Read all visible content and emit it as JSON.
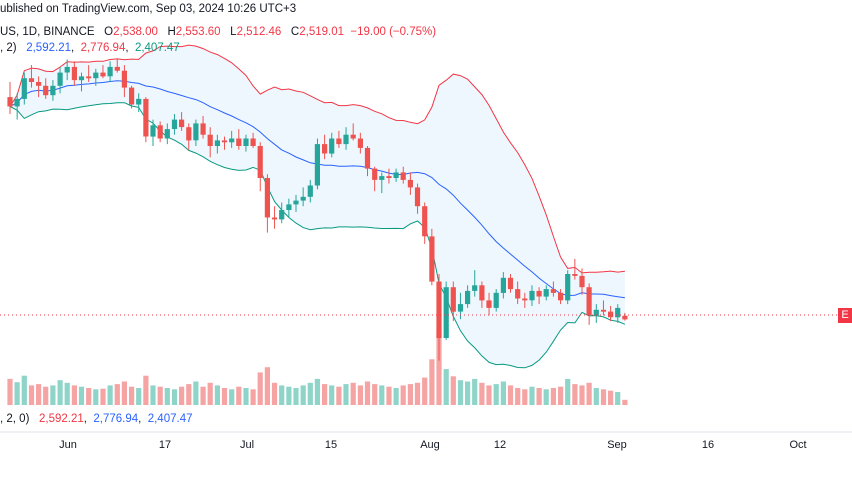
{
  "header": {
    "published": "ublished on TradingView.com, Sep 03, 2024 10:26 UTC+3",
    "symbol": "US, 1D, BINANCE",
    "o_label": "O",
    "o_value": "2,538.00",
    "h_label": "H",
    "h_value": "2,553.60",
    "l_label": "L",
    "l_value": "2,512.46",
    "c_label": "C",
    "c_value": "2,519.01",
    "change": "−19.00 (−0.75%)",
    "bb_params": ", 2)",
    "bb_basis": "2,592.21",
    "bb_upper": "2,776.94",
    "bb_lower": "2,407.47"
  },
  "volume_legend": {
    "params": ", 2, 0)",
    "basis": "2,592.21",
    "upper": "2,776.94",
    "lower": "2,407.47"
  },
  "price_tag": "E",
  "colors": {
    "up": "#26a69a",
    "down": "#ef5350",
    "upper": "#f23645",
    "basis": "#2962ff",
    "lower": "#089981",
    "band_fill": "#e3f2fd",
    "vol_up": "#8fd4c8",
    "vol_down": "#f5a3a3"
  },
  "chart_data": {
    "type": "candlestick",
    "x_ticks": [
      "Jun",
      "17",
      "Jul",
      "15",
      "Aug",
      "12",
      "Sep",
      "16",
      "Oct"
    ],
    "candles": [
      [
        3700,
        3780,
        3610,
        3650
      ],
      [
        3650,
        3720,
        3580,
        3690
      ],
      [
        3690,
        3830,
        3660,
        3800
      ],
      [
        3800,
        3870,
        3750,
        3780
      ],
      [
        3780,
        3810,
        3700,
        3760
      ],
      [
        3760,
        3800,
        3690,
        3710
      ],
      [
        3710,
        3790,
        3680,
        3760
      ],
      [
        3760,
        3860,
        3720,
        3830
      ],
      [
        3830,
        3900,
        3790,
        3860
      ],
      [
        3860,
        3890,
        3760,
        3790
      ],
      [
        3790,
        3830,
        3730,
        3810
      ],
      [
        3810,
        3870,
        3780,
        3800
      ],
      [
        3800,
        3850,
        3760,
        3830
      ],
      [
        3830,
        3870,
        3800,
        3810
      ],
      [
        3810,
        3890,
        3780,
        3860
      ],
      [
        3860,
        3900,
        3830,
        3840
      ],
      [
        3840,
        3870,
        3700,
        3750
      ],
      [
        3750,
        3760,
        3640,
        3660
      ],
      [
        3660,
        3720,
        3620,
        3690
      ],
      [
        3690,
        3700,
        3460,
        3490
      ],
      [
        3490,
        3580,
        3440,
        3550
      ],
      [
        3550,
        3570,
        3460,
        3480
      ],
      [
        3480,
        3560,
        3450,
        3530
      ],
      [
        3530,
        3610,
        3500,
        3580
      ],
      [
        3580,
        3620,
        3520,
        3540
      ],
      [
        3540,
        3560,
        3420,
        3470
      ],
      [
        3470,
        3580,
        3440,
        3560
      ],
      [
        3560,
        3600,
        3480,
        3500
      ],
      [
        3500,
        3540,
        3380,
        3440
      ],
      [
        3440,
        3500,
        3400,
        3470
      ],
      [
        3470,
        3490,
        3420,
        3460
      ],
      [
        3460,
        3520,
        3430,
        3480
      ],
      [
        3480,
        3530,
        3420,
        3440
      ],
      [
        3440,
        3500,
        3410,
        3480
      ],
      [
        3480,
        3510,
        3430,
        3440
      ],
      [
        3440,
        3460,
        3200,
        3270
      ],
      [
        3270,
        3290,
        2980,
        3060
      ],
      [
        3060,
        3120,
        3000,
        3050
      ],
      [
        3050,
        3140,
        3030,
        3100
      ],
      [
        3100,
        3160,
        3060,
        3130
      ],
      [
        3130,
        3180,
        3090,
        3150
      ],
      [
        3150,
        3220,
        3120,
        3170
      ],
      [
        3170,
        3260,
        3140,
        3230
      ],
      [
        3230,
        3480,
        3210,
        3450
      ],
      [
        3450,
        3500,
        3370,
        3400
      ],
      [
        3400,
        3510,
        3380,
        3480
      ],
      [
        3480,
        3520,
        3430,
        3450
      ],
      [
        3450,
        3540,
        3420,
        3500
      ],
      [
        3500,
        3560,
        3470,
        3480
      ],
      [
        3480,
        3510,
        3400,
        3430
      ],
      [
        3430,
        3440,
        3280,
        3320
      ],
      [
        3320,
        3330,
        3200,
        3260
      ],
      [
        3260,
        3300,
        3190,
        3280
      ],
      [
        3280,
        3320,
        3240,
        3270
      ],
      [
        3270,
        3320,
        3250,
        3300
      ],
      [
        3300,
        3330,
        3240,
        3260
      ],
      [
        3260,
        3300,
        3180,
        3220
      ],
      [
        3220,
        3240,
        3080,
        3120
      ],
      [
        3120,
        3140,
        2920,
        2960
      ],
      [
        2960,
        3000,
        2700,
        2720
      ],
      [
        2720,
        2760,
        2300,
        2420
      ],
      [
        2420,
        2720,
        2410,
        2690
      ],
      [
        2690,
        2720,
        2510,
        2560
      ],
      [
        2560,
        2660,
        2520,
        2600
      ],
      [
        2600,
        2700,
        2580,
        2670
      ],
      [
        2670,
        2780,
        2640,
        2700
      ],
      [
        2700,
        2720,
        2580,
        2620
      ],
      [
        2620,
        2660,
        2540,
        2580
      ],
      [
        2580,
        2680,
        2560,
        2660
      ],
      [
        2660,
        2770,
        2630,
        2740
      ],
      [
        2740,
        2760,
        2660,
        2680
      ],
      [
        2680,
        2720,
        2600,
        2630
      ],
      [
        2630,
        2660,
        2580,
        2620
      ],
      [
        2620,
        2700,
        2590,
        2670
      ],
      [
        2670,
        2690,
        2600,
        2640
      ],
      [
        2640,
        2700,
        2620,
        2680
      ],
      [
        2680,
        2720,
        2640,
        2660
      ],
      [
        2660,
        2680,
        2600,
        2620
      ],
      [
        2620,
        2780,
        2600,
        2760
      ],
      [
        2760,
        2840,
        2730,
        2750
      ],
      [
        2750,
        2790,
        2650,
        2690
      ],
      [
        2690,
        2710,
        2490,
        2540
      ],
      [
        2540,
        2600,
        2500,
        2570
      ],
      [
        2570,
        2620,
        2540,
        2560
      ],
      [
        2560,
        2590,
        2510,
        2530
      ],
      [
        2530,
        2600,
        2500,
        2580
      ],
      [
        2538,
        2553.6,
        2512.46,
        2519.01
      ]
    ],
    "volume": [
      40,
      35,
      45,
      30,
      32,
      28,
      30,
      38,
      34,
      30,
      28,
      26,
      24,
      25,
      30,
      32,
      36,
      28,
      26,
      45,
      30,
      28,
      26,
      24,
      28,
      32,
      36,
      28,
      34,
      30,
      26,
      24,
      28,
      26,
      24,
      50,
      58,
      34,
      30,
      28,
      26,
      30,
      34,
      40,
      32,
      30,
      28,
      32,
      34,
      30,
      36,
      32,
      30,
      28,
      26,
      30,
      32,
      34,
      42,
      70,
      115,
      55,
      44,
      38,
      36,
      40,
      34,
      30,
      32,
      36,
      30,
      26,
      24,
      28,
      26,
      24,
      26,
      28,
      40,
      32,
      30,
      34,
      26,
      24,
      22,
      20,
      8
    ]
  }
}
